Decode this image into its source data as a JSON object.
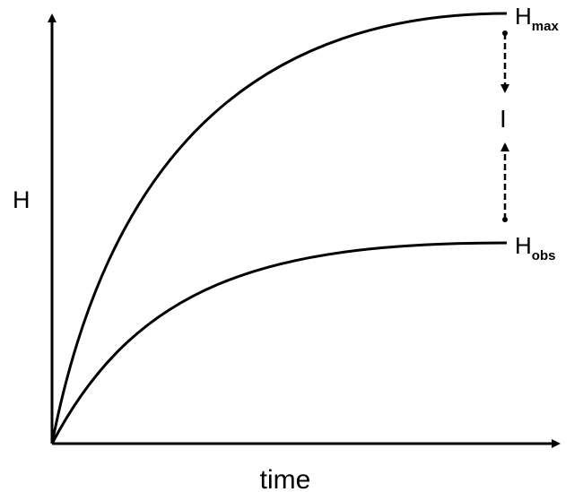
{
  "y_axis_label": "H",
  "x_axis_label": "time",
  "curves": [
    {
      "label": {
        "main": "H",
        "sub": "max"
      }
    },
    {
      "label": {
        "main": "H",
        "sub": "obs"
      }
    }
  ],
  "gap_label": "I"
}
